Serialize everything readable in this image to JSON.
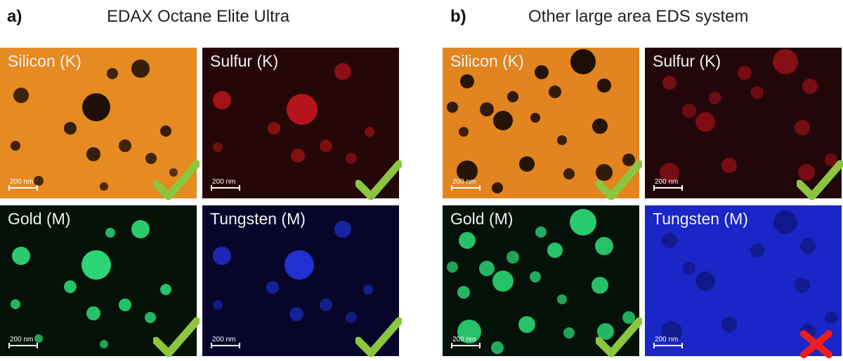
{
  "panels": [
    {
      "letter": "a)",
      "title": "EDAX Octane Elite Ultra",
      "maps": [
        {
          "label": "Silicon (K)",
          "scale": "200 nm",
          "result": "check-icon"
        },
        {
          "label": "Sulfur (K)",
          "scale": "200 nm",
          "result": "check-icon"
        },
        {
          "label": "Gold (M)",
          "scale": "200 nm",
          "result": "check-icon"
        },
        {
          "label": "Tungsten (M)",
          "scale": "200 nm",
          "result": "check-icon"
        }
      ]
    },
    {
      "letter": "b)",
      "title": "Other large area EDS system",
      "maps": [
        {
          "label": "Silicon (K)",
          "scale": "200 nm",
          "result": "check-icon"
        },
        {
          "label": "Sulfur (K)",
          "scale": "200 nm",
          "result": "check-icon"
        },
        {
          "label": "Gold (M)",
          "scale": "200 nm",
          "result": "check-icon"
        },
        {
          "label": "Tungsten (M)",
          "scale": "200 nm",
          "result": "cross-icon"
        }
      ]
    }
  ],
  "colors": {
    "silicon": "#e88a1c",
    "sulfur": "#c4141c",
    "gold": "#2ee07a",
    "tungsten": "#1f2ee0",
    "check": "#8cc63f",
    "cross": "#ee1c1c"
  }
}
